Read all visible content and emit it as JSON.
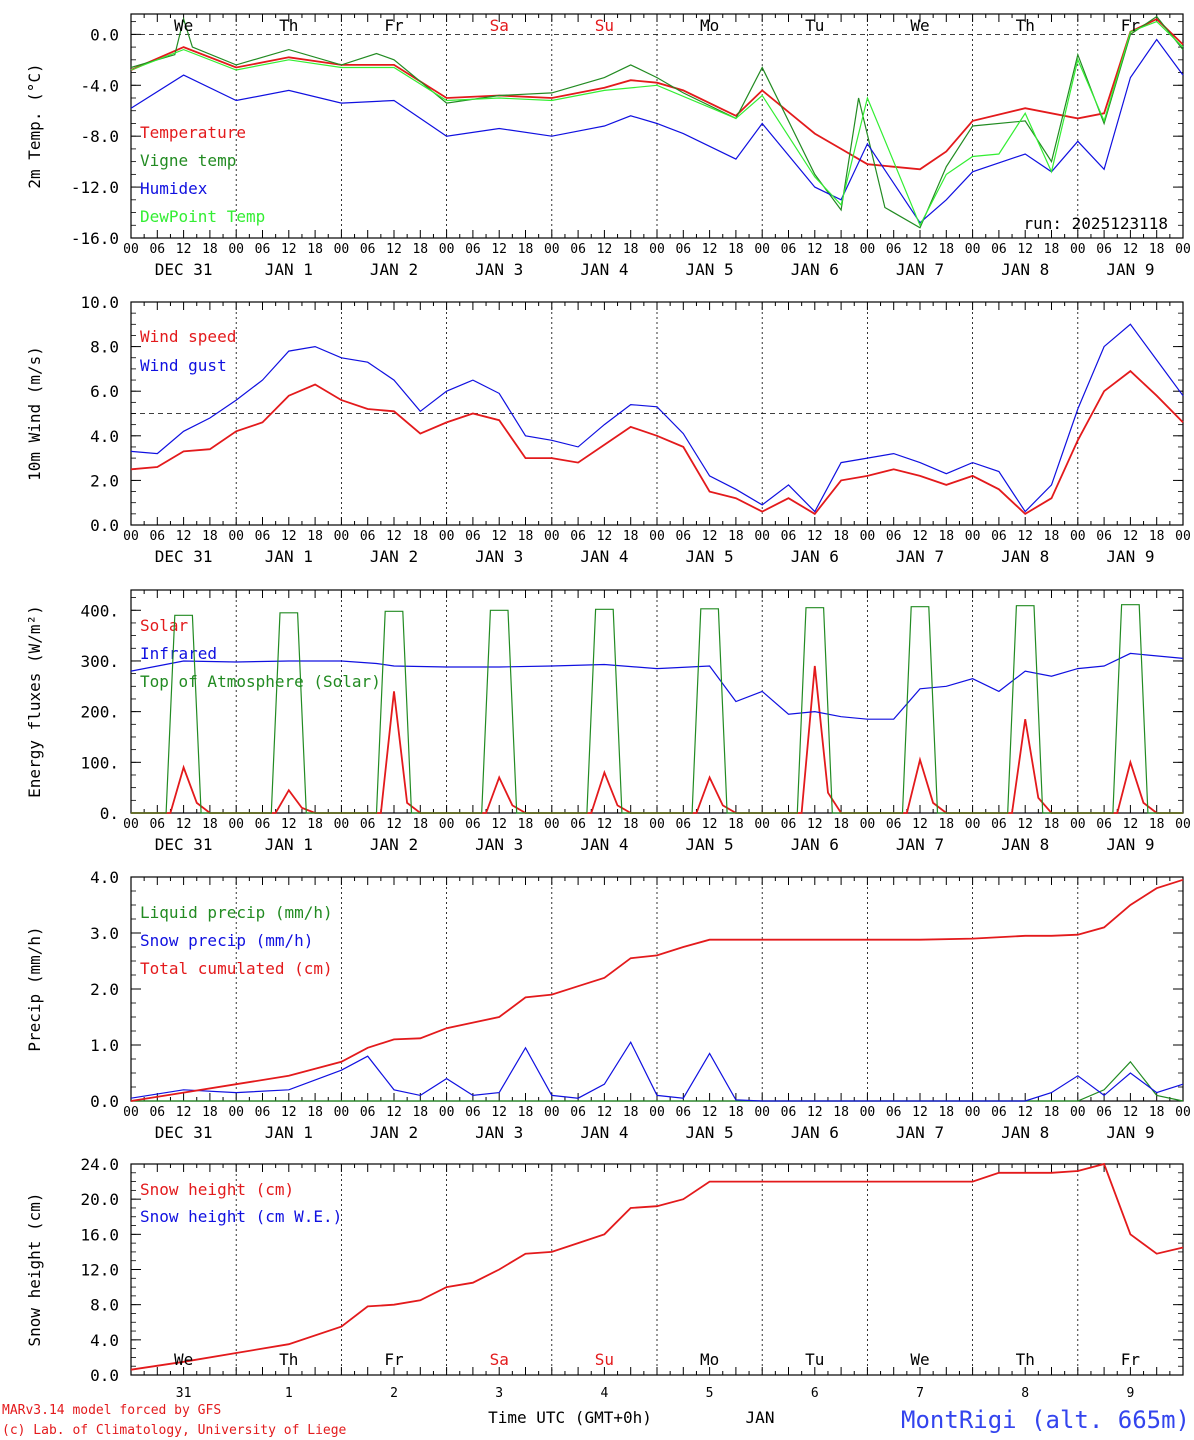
{
  "meta": {
    "run_label": "run: 2025123118",
    "credit_line1": "MARv3.14 model forced by GFS",
    "credit_line2": "(c) Lab. of Climatology, University of Liege",
    "time_axis_label": "Time UTC (GMT+0h)",
    "month_label": "JAN",
    "station_title": "MontRigi (alt. 665m)"
  },
  "days": {
    "weekday_labels": [
      "We",
      "Th",
      "Fr",
      "Sa",
      "Su",
      "Mo",
      "Tu",
      "We",
      "Th",
      "Fr"
    ],
    "weekend_flags": [
      false,
      false,
      false,
      true,
      true,
      false,
      false,
      false,
      false,
      false
    ],
    "date_labels": [
      "DEC 31",
      "JAN  1",
      "JAN  2",
      "JAN  3",
      "JAN  4",
      "JAN  5",
      "JAN  6",
      "JAN  7",
      "JAN  8",
      "JAN  9"
    ],
    "day_numbers": [
      "31",
      "1",
      "2",
      "3",
      "4",
      "5",
      "6",
      "7",
      "8",
      "9"
    ],
    "hour_ticks": [
      "00",
      "06",
      "12",
      "18"
    ],
    "final_hour_tick": "00"
  },
  "colors": {
    "red": "#e31a1c",
    "green": "#228b22",
    "blue": "#1010e0",
    "lightgreen": "#33ee33",
    "weekend": "#e31a1c",
    "title_blue": "#3344ee"
  },
  "chart_data": [
    {
      "type": "line",
      "ylabel": "2m Temp. (°C)",
      "ylim": [
        -16,
        1.6
      ],
      "yticks": [
        "0.0",
        "-4.0",
        "-8.0",
        "-12.0",
        "-16.0"
      ],
      "ytick_values": [
        0,
        -4,
        -8,
        -12,
        -16
      ],
      "ref_line": 0,
      "x_unit": "hours since DEC 31 00 UTC",
      "series": [
        {
          "name": "Temperature",
          "color": "red",
          "x": [
            0,
            12,
            24,
            36,
            48,
            60,
            72,
            84,
            96,
            108,
            114,
            120,
            126,
            138,
            144,
            156,
            162,
            168,
            180,
            186,
            192,
            204,
            216,
            222,
            228,
            234,
            240
          ],
          "y": [
            -2.8,
            -1,
            -2.6,
            -1.8,
            -2.4,
            -2.4,
            -5,
            -4.8,
            -5,
            -4.2,
            -3.6,
            -3.8,
            -4.4,
            -6.4,
            -4.4,
            -7.8,
            -9,
            -10.2,
            -10.6,
            -9.2,
            -6.8,
            -5.8,
            -6.6,
            -6.2,
            0.2,
            1.2,
            -0.8
          ]
        },
        {
          "name": "Vigne temp",
          "color": "green",
          "x": [
            0,
            10,
            12,
            14,
            24,
            36,
            48,
            56,
            60,
            72,
            84,
            96,
            108,
            114,
            120,
            126,
            138,
            144,
            156,
            162,
            166,
            172,
            180,
            186,
            192,
            204,
            210,
            216,
            222,
            228,
            234,
            240
          ],
          "y": [
            -2.6,
            -1.6,
            1.2,
            -1,
            -2.4,
            -1.2,
            -2.4,
            -1.5,
            -2,
            -5.4,
            -4.8,
            -4.6,
            -3.4,
            -2.4,
            -3.4,
            -4.6,
            -6.6,
            -2.6,
            -11,
            -13.8,
            -5,
            -13.6,
            -15.2,
            -10.4,
            -7.2,
            -6.8,
            -10,
            -1.6,
            -7,
            0,
            1.4,
            -1.2
          ]
        },
        {
          "name": "Humidex",
          "color": "blue",
          "x": [
            0,
            12,
            24,
            36,
            48,
            60,
            72,
            84,
            96,
            108,
            114,
            120,
            126,
            138,
            144,
            156,
            162,
            168,
            180,
            186,
            192,
            204,
            210,
            216,
            222,
            228,
            234,
            240
          ],
          "y": [
            -5.8,
            -3.2,
            -5.2,
            -4.4,
            -5.4,
            -5.2,
            -8,
            -7.4,
            -8,
            -7.2,
            -6.4,
            -7,
            -7.8,
            -9.8,
            -7,
            -12,
            -13,
            -8.6,
            -14.8,
            -13,
            -10.8,
            -9.4,
            -10.8,
            -8.4,
            -10.6,
            -3.4,
            -0.4,
            -3.2
          ]
        },
        {
          "name": "DewPoint Temp",
          "color": "lightgreen",
          "x": [
            0,
            12,
            24,
            36,
            48,
            60,
            72,
            84,
            96,
            108,
            120,
            138,
            144,
            156,
            162,
            168,
            180,
            186,
            192,
            198,
            204,
            210,
            216,
            222,
            228,
            234,
            240
          ],
          "y": [
            -2.8,
            -1.2,
            -2.8,
            -2,
            -2.6,
            -2.6,
            -5.2,
            -5,
            -5.2,
            -4.4,
            -4,
            -6.6,
            -4.8,
            -11.2,
            -13.4,
            -5,
            -15,
            -11,
            -9.6,
            -9.4,
            -6.2,
            -10.8,
            -2,
            -6.8,
            0.2,
            1,
            -1
          ]
        }
      ]
    },
    {
      "type": "line",
      "ylabel": "10m Wind (m/s)",
      "ylim": [
        0,
        10
      ],
      "yticks": [
        "10.0",
        "8.0",
        "6.0",
        "4.0",
        "2.0",
        "0.0"
      ],
      "ytick_values": [
        10,
        8,
        6,
        4,
        2,
        0
      ],
      "ref_line": 5,
      "series": [
        {
          "name": "Wind speed",
          "color": "red",
          "x": [
            0,
            6,
            12,
            18,
            24,
            30,
            36,
            42,
            48,
            54,
            60,
            66,
            72,
            78,
            84,
            90,
            96,
            102,
            108,
            114,
            120,
            126,
            132,
            138,
            144,
            150,
            156,
            162,
            168,
            174,
            180,
            186,
            192,
            198,
            204,
            210,
            216,
            222,
            228,
            234,
            240
          ],
          "y": [
            2.5,
            2.6,
            3.3,
            3.4,
            4.2,
            4.6,
            5.8,
            6.3,
            5.6,
            5.2,
            5.1,
            4.1,
            4.6,
            5,
            4.7,
            3,
            3,
            2.8,
            3.6,
            4.4,
            4,
            3.5,
            1.5,
            1.2,
            0.6,
            1.2,
            0.5,
            2,
            2.2,
            2.5,
            2.2,
            1.8,
            2.2,
            1.6,
            0.5,
            1.2,
            3.8,
            6,
            6.9,
            5.8,
            4.6
          ]
        },
        {
          "name": "Wind gust",
          "color": "blue",
          "x": [
            0,
            6,
            12,
            18,
            24,
            30,
            36,
            42,
            48,
            54,
            60,
            66,
            72,
            78,
            84,
            90,
            96,
            102,
            108,
            114,
            120,
            126,
            132,
            138,
            144,
            150,
            156,
            162,
            168,
            174,
            180,
            186,
            192,
            198,
            204,
            210,
            216,
            222,
            228,
            234,
            240
          ],
          "y": [
            3.3,
            3.2,
            4.2,
            4.8,
            5.6,
            6.5,
            7.8,
            8,
            7.5,
            7.3,
            6.5,
            5.1,
            6,
            6.5,
            5.9,
            4,
            3.8,
            3.5,
            4.5,
            5.4,
            5.3,
            4.1,
            2.2,
            1.6,
            0.9,
            1.8,
            0.6,
            2.8,
            3,
            3.2,
            2.8,
            2.3,
            2.8,
            2.4,
            0.6,
            1.8,
            5.2,
            8,
            9,
            7.4,
            5.8
          ]
        }
      ]
    },
    {
      "type": "line",
      "ylabel": "Energy fluxes (W/m²)",
      "ylim": [
        0,
        440
      ],
      "yticks": [
        "400.",
        "300.",
        "200.",
        "100.",
        "0."
      ],
      "ytick_values": [
        400,
        300,
        200,
        100,
        0
      ],
      "series": [
        {
          "name": "Solar",
          "color": "red",
          "x": [
            0,
            9,
            12,
            15,
            18,
            24,
            33,
            36,
            39,
            42,
            48,
            57,
            60,
            63,
            66,
            72,
            81,
            84,
            87,
            90,
            96,
            105,
            108,
            111,
            114,
            120,
            129,
            132,
            135,
            138,
            144,
            153,
            156,
            159,
            162,
            168,
            177,
            180,
            183,
            186,
            192,
            201,
            204,
            207,
            210,
            216,
            225,
            228,
            231,
            234,
            240
          ],
          "y": [
            0,
            0,
            90,
            20,
            0,
            0,
            0,
            45,
            10,
            0,
            0,
            0,
            240,
            20,
            0,
            0,
            0,
            70,
            15,
            0,
            0,
            0,
            80,
            15,
            0,
            0,
            0,
            70,
            15,
            0,
            0,
            0,
            290,
            40,
            0,
            0,
            0,
            105,
            20,
            0,
            0,
            0,
            185,
            30,
            0,
            0,
            0,
            100,
            20,
            0,
            0
          ]
        },
        {
          "name": "Infrared",
          "color": "blue",
          "x": [
            0,
            12,
            24,
            36,
            48,
            56,
            60,
            72,
            84,
            96,
            108,
            120,
            132,
            138,
            144,
            150,
            156,
            162,
            168,
            174,
            180,
            186,
            192,
            198,
            204,
            210,
            216,
            222,
            228,
            240
          ],
          "y": [
            280,
            300,
            298,
            300,
            300,
            295,
            290,
            288,
            288,
            290,
            293,
            285,
            290,
            220,
            240,
            195,
            200,
            190,
            185,
            185,
            245,
            250,
            265,
            240,
            280,
            270,
            285,
            290,
            315,
            305
          ]
        },
        {
          "name": "Top of Atmosphere (Solar)",
          "color": "green",
          "x": [
            0,
            8,
            10,
            14,
            16,
            24,
            32,
            34,
            38,
            40,
            48,
            56,
            58,
            62,
            64,
            72,
            80,
            82,
            86,
            88,
            96,
            104,
            106,
            110,
            112,
            120,
            128,
            130,
            134,
            136,
            144,
            152,
            154,
            158,
            160,
            168,
            176,
            178,
            182,
            184,
            192,
            200,
            202,
            206,
            208,
            216,
            224,
            226,
            230,
            232,
            240
          ],
          "y": [
            0,
            0,
            390,
            390,
            0,
            0,
            0,
            395,
            395,
            0,
            0,
            0,
            398,
            398,
            0,
            0,
            0,
            400,
            400,
            0,
            0,
            0,
            402,
            402,
            0,
            0,
            0,
            403,
            403,
            0,
            0,
            0,
            405,
            405,
            0,
            0,
            0,
            407,
            407,
            0,
            0,
            0,
            409,
            409,
            0,
            0,
            0,
            411,
            411,
            0,
            0
          ]
        }
      ]
    },
    {
      "type": "line",
      "ylabel": "Precip (mm/h)",
      "ylim": [
        0,
        4
      ],
      "yticks": [
        "4.0",
        "3.0",
        "2.0",
        "1.0",
        "0.0"
      ],
      "ytick_values": [
        4,
        3,
        2,
        1,
        0
      ],
      "series": [
        {
          "name": "Liquid precip (mm/h)",
          "color": "green",
          "x": [
            0,
            216,
            222,
            228,
            234,
            240
          ],
          "y": [
            0,
            0,
            0.2,
            0.7,
            0.1,
            0
          ]
        },
        {
          "name": "Snow precip (mm/h)",
          "color": "blue",
          "x": [
            0,
            12,
            24,
            36,
            48,
            54,
            60,
            66,
            72,
            78,
            84,
            90,
            96,
            102,
            108,
            114,
            120,
            126,
            132,
            138,
            144,
            156,
            168,
            180,
            192,
            204,
            210,
            216,
            222,
            228,
            234,
            240
          ],
          "y": [
            0.05,
            0.2,
            0.15,
            0.2,
            0.55,
            0.8,
            0.2,
            0.1,
            0.4,
            0.1,
            0.15,
            0.95,
            0.1,
            0.05,
            0.3,
            1.05,
            0.1,
            0.05,
            0.85,
            0.02,
            0,
            0,
            0,
            0,
            0,
            0,
            0.15,
            0.45,
            0.1,
            0.5,
            0.15,
            0.3
          ]
        },
        {
          "name": "Total cumulated (cm)",
          "color": "red",
          "x": [
            0,
            12,
            24,
            36,
            48,
            54,
            60,
            66,
            72,
            78,
            84,
            90,
            96,
            102,
            108,
            114,
            120,
            126,
            132,
            138,
            144,
            156,
            168,
            180,
            192,
            204,
            210,
            216,
            222,
            228,
            234,
            240
          ],
          "y": [
            0,
            0.15,
            0.3,
            0.45,
            0.7,
            0.95,
            1.1,
            1.12,
            1.3,
            1.4,
            1.5,
            1.85,
            1.9,
            2.05,
            2.2,
            2.55,
            2.6,
            2.75,
            2.88,
            2.88,
            2.88,
            2.88,
            2.88,
            2.88,
            2.9,
            2.95,
            2.95,
            2.97,
            3.1,
            3.5,
            3.8,
            3.95
          ]
        }
      ]
    },
    {
      "type": "line",
      "ylabel": "Snow height (cm)",
      "ylim": [
        0,
        24
      ],
      "yticks": [
        "24.0",
        "20.0",
        "16.0",
        "12.0",
        "8.0",
        "4.0",
        "0.0"
      ],
      "ytick_values": [
        24,
        20,
        16,
        12,
        8,
        4,
        0
      ],
      "series": [
        {
          "name": "Snow height (cm)",
          "color": "red",
          "x": [
            0,
            12,
            24,
            36,
            48,
            54,
            60,
            66,
            72,
            78,
            84,
            90,
            96,
            102,
            108,
            114,
            120,
            126,
            132,
            138,
            144,
            156,
            168,
            180,
            192,
            198,
            204,
            210,
            216,
            222,
            228,
            234,
            240
          ],
          "y": [
            0.6,
            1.5,
            2.5,
            3.5,
            5.5,
            7.8,
            8,
            8.5,
            10,
            10.5,
            12,
            13.8,
            14,
            15,
            16,
            19,
            19.2,
            20,
            22,
            22,
            22,
            22,
            22,
            22,
            22,
            23,
            23,
            23,
            23.2,
            24,
            16,
            13.8,
            14.5
          ]
        },
        {
          "name": "Snow height (cm W.E.)",
          "color": "blue",
          "x": [],
          "y": []
        }
      ]
    }
  ]
}
